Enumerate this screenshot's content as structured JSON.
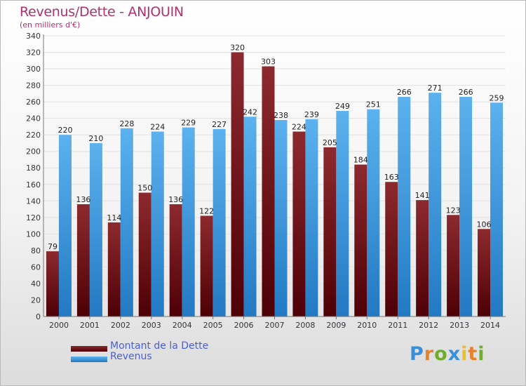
{
  "title": "Revenus/Dette - ANJOUIN",
  "subtitle": "(en milliers d'€)",
  "logo": "Proxiti",
  "chart_data": {
    "type": "bar",
    "title": "Revenus/Dette - ANJOUIN",
    "ylabel": "(en milliers d'€)",
    "categories": [
      "2000",
      "2001",
      "2002",
      "2003",
      "2004",
      "2005",
      "2006",
      "2007",
      "2008",
      "2009",
      "2010",
      "2011",
      "2012",
      "2013",
      "2014"
    ],
    "yticks": [
      0,
      20,
      40,
      60,
      80,
      100,
      120,
      140,
      160,
      180,
      200,
      220,
      240,
      260,
      280,
      300,
      320,
      340
    ],
    "ylim": [
      0,
      340
    ],
    "series": [
      {
        "name": "Montant de la Dette",
        "color": "#7a1418",
        "values": [
          79,
          136,
          114,
          150,
          136,
          122,
          320,
          303,
          224,
          205,
          184,
          163,
          141,
          123,
          106
        ]
      },
      {
        "name": "Revenus",
        "color": "#3d9ee6",
        "values": [
          220,
          210,
          228,
          224,
          229,
          227,
          242,
          238,
          239,
          249,
          251,
          266,
          271,
          266,
          259
        ]
      }
    ],
    "legend": "bottom-left"
  }
}
